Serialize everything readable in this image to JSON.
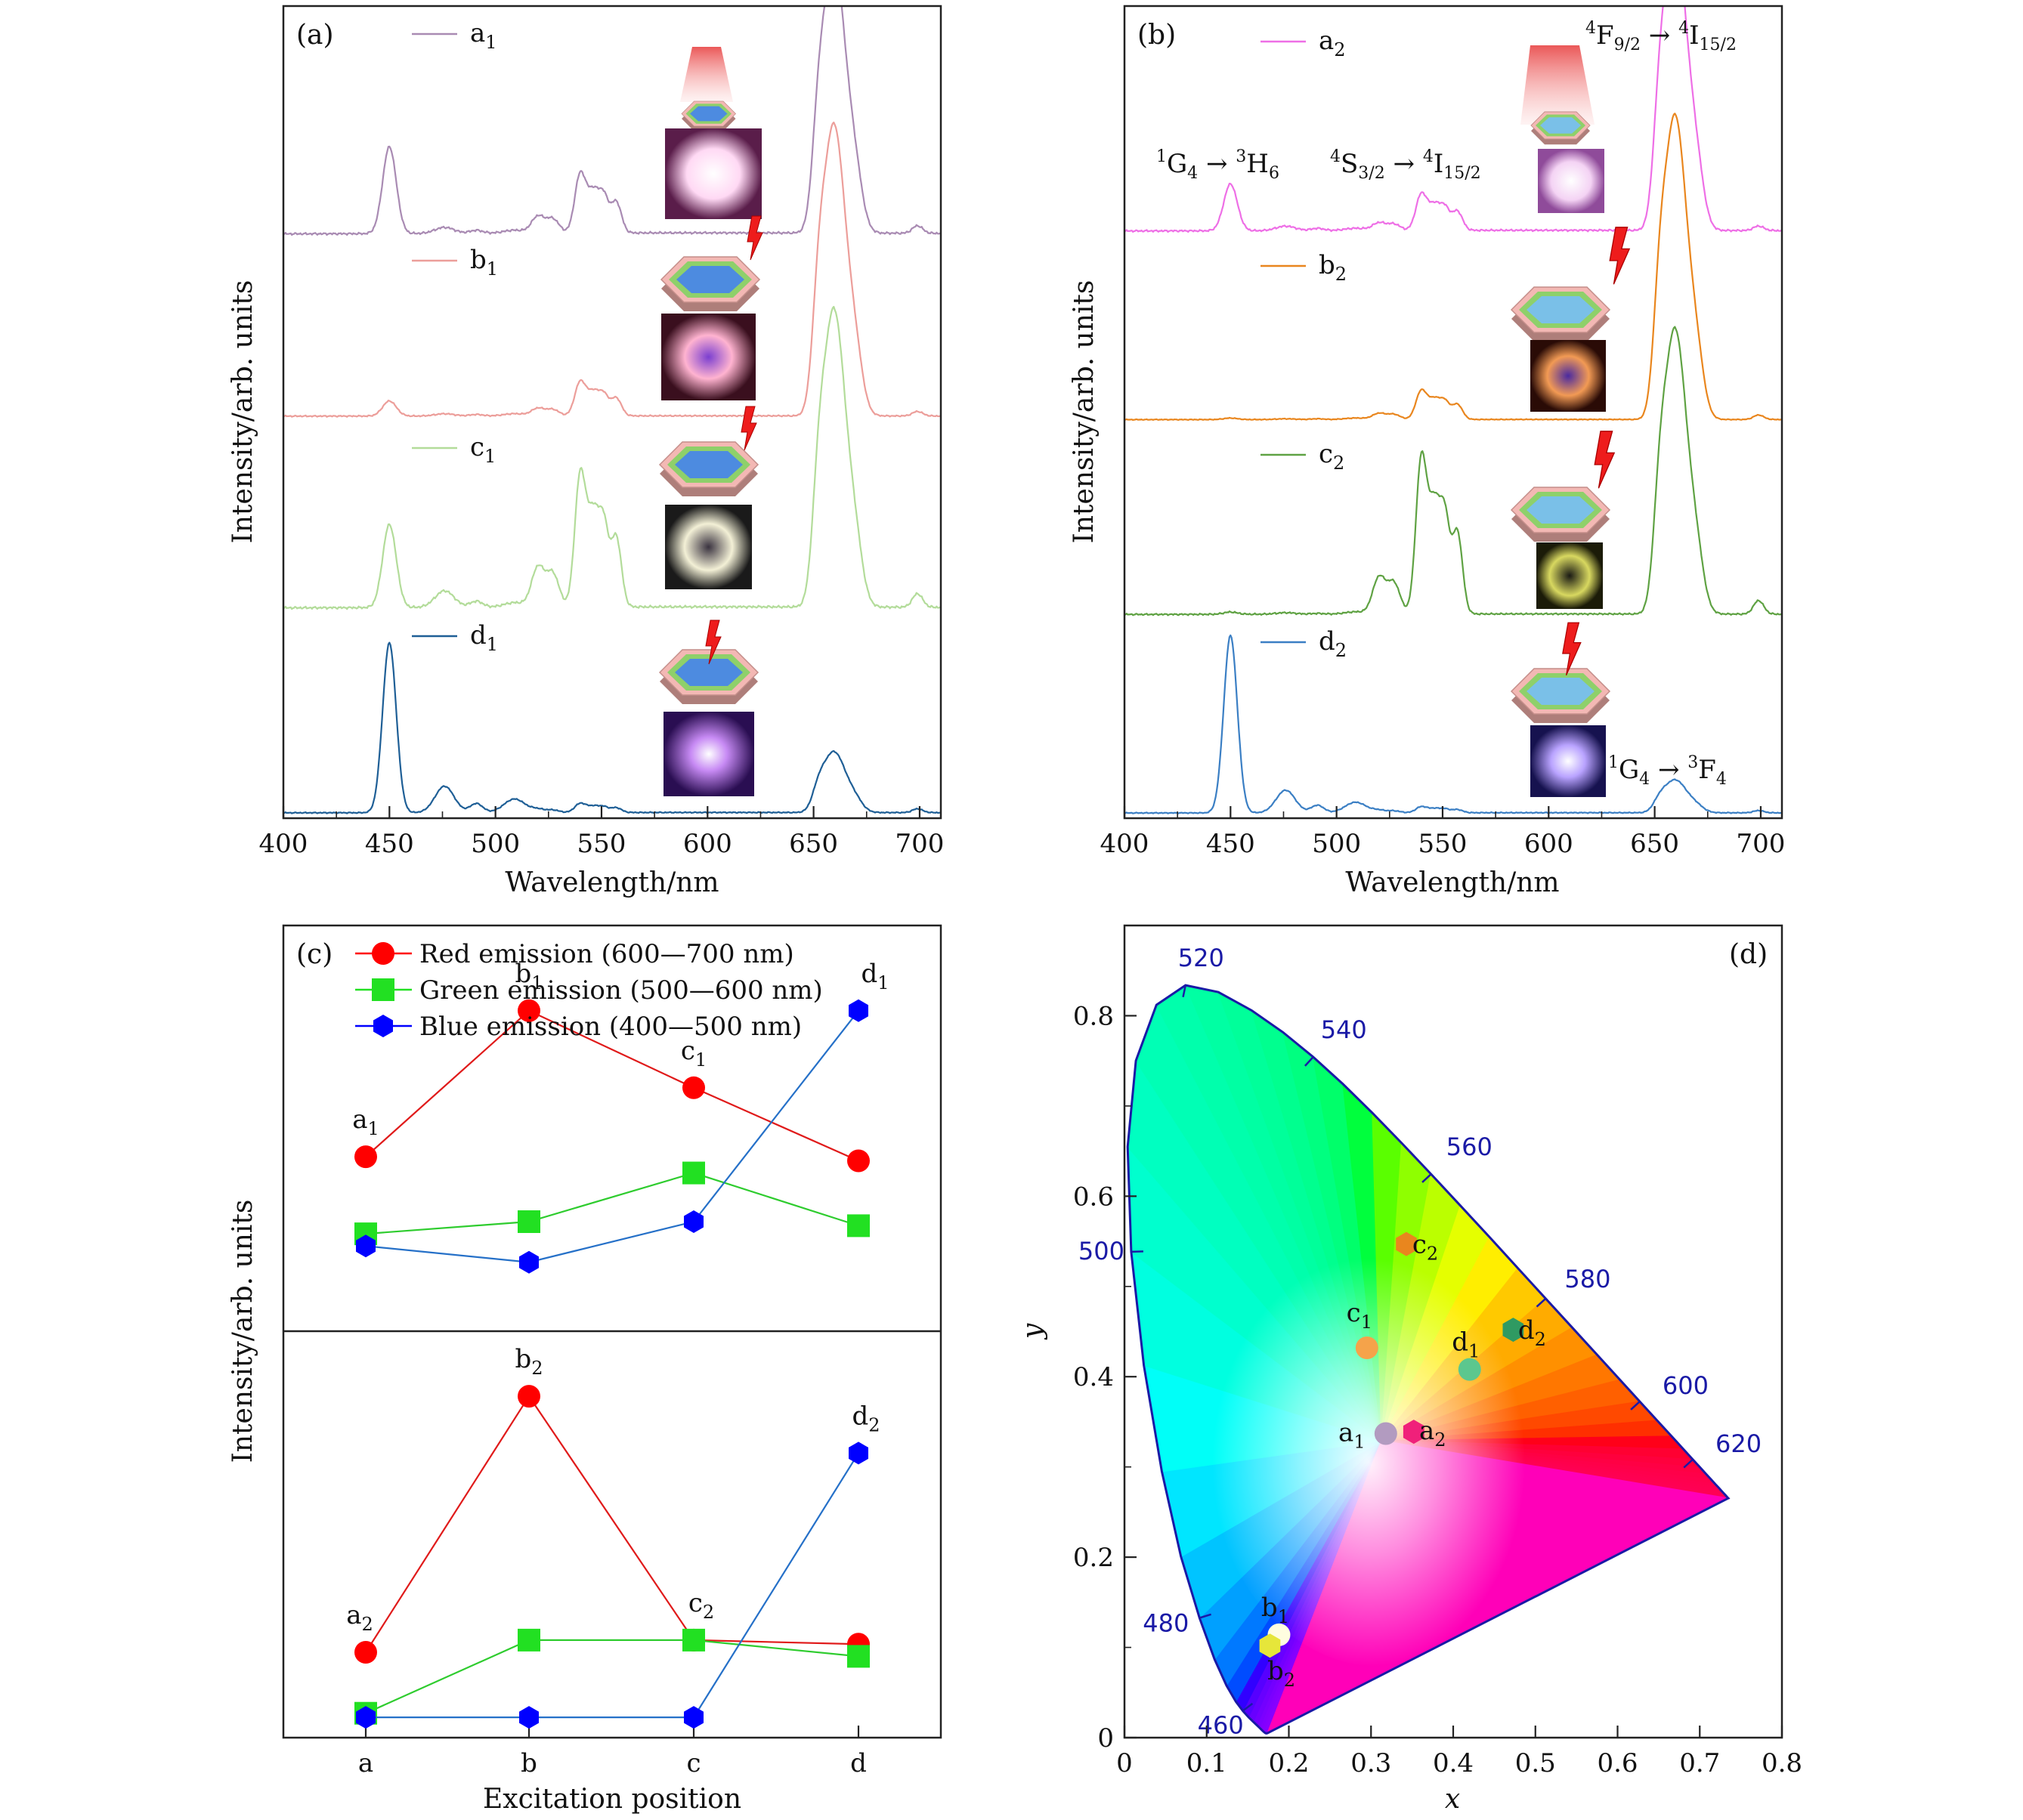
{
  "chart_data": [
    {
      "id": "a",
      "type": "line",
      "panel_label": "(a)",
      "xlabel": "Wavelength/nm",
      "ylabel": "Intensity/arb. units",
      "xlim": [
        400,
        710
      ],
      "xticks": [
        400,
        450,
        500,
        550,
        600,
        650,
        700
      ],
      "series": [
        {
          "name": "a1",
          "label_main": "a",
          "label_sub": "1",
          "color": "#a98bb3"
        },
        {
          "name": "b1",
          "label_main": "b",
          "label_sub": "1",
          "color": "#ec9e9a"
        },
        {
          "name": "c1",
          "label_main": "c",
          "label_sub": "1",
          "color": "#b3dc9a"
        },
        {
          "name": "d1",
          "label_main": "d",
          "label_sub": "1",
          "color": "#1f5f96"
        }
      ]
    },
    {
      "id": "b",
      "type": "line",
      "panel_label": "(b)",
      "xlabel": "Wavelength/nm",
      "ylabel": "Intensity/arb. units",
      "xlim": [
        400,
        710
      ],
      "xticks": [
        400,
        450,
        500,
        550,
        600,
        650,
        700
      ],
      "series": [
        {
          "name": "a2",
          "label_main": "a",
          "label_sub": "2",
          "color": "#ee6fe6"
        },
        {
          "name": "b2",
          "label_main": "b",
          "label_sub": "2",
          "color": "#e9861e"
        },
        {
          "name": "c2",
          "label_main": "c",
          "label_sub": "2",
          "color": "#5fa243"
        },
        {
          "name": "d2",
          "label_main": "d",
          "label_sub": "2",
          "color": "#3b7fc4"
        }
      ],
      "annotations": {
        "t1": {
          "pre": "4",
          "a": "F",
          "asub": "9/2",
          "mid": "4",
          "b": "I",
          "bsub": "15/2"
        },
        "t2": {
          "pre": "1",
          "a": "G",
          "asub": "4",
          "mid": "3",
          "b": "H",
          "bsub": "6"
        },
        "t3": {
          "pre": "4",
          "a": "S",
          "asub": "3/2",
          "mid": "4",
          "b": "I",
          "bsub": "15/2"
        },
        "t4": {
          "pre": "1",
          "a": "G",
          "asub": "4",
          "mid": "3",
          "b": "F",
          "bsub": "4"
        }
      }
    },
    {
      "id": "c",
      "type": "line",
      "panel_label": "(c)",
      "xlabel": "Excitation position",
      "ylabel": "Intensity/arb. units",
      "categories": [
        "a",
        "b",
        "c",
        "d"
      ],
      "legend": [
        {
          "label": "Red emission (600—700 nm)",
          "color": "#ff0000",
          "marker": "circle"
        },
        {
          "label": "Green emission (500—600 nm)",
          "color": "#22e022",
          "marker": "square"
        },
        {
          "label": "Blue emission (400—500 nm)",
          "color": "#0000ff",
          "marker": "hexagon"
        }
      ],
      "upper": {
        "ylim": [
          0,
          1
        ],
        "series": [
          {
            "name": "Red",
            "values": [
              0.43,
              0.79,
              0.6,
              0.42
            ]
          },
          {
            "name": "Green",
            "values": [
              0.24,
              0.27,
              0.39,
              0.26
            ]
          },
          {
            "name": "Blue",
            "values": [
              0.21,
              0.17,
              0.27,
              0.79
            ]
          }
        ],
        "point_labels": [
          {
            "main": "a",
            "sub": "1"
          },
          {
            "main": "b",
            "sub": "1"
          },
          {
            "main": "c",
            "sub": "1"
          },
          {
            "main": "d",
            "sub": "1"
          }
        ]
      },
      "lower": {
        "ylim": [
          0,
          1
        ],
        "series": [
          {
            "name": "Red",
            "values": [
              0.21,
              0.84,
              0.24,
              0.23
            ]
          },
          {
            "name": "Green",
            "values": [
              0.06,
              0.24,
              0.24,
              0.2
            ]
          },
          {
            "name": "Blue",
            "values": [
              0.05,
              0.05,
              0.05,
              0.7
            ]
          }
        ],
        "point_labels": [
          {
            "main": "a",
            "sub": "2"
          },
          {
            "main": "b",
            "sub": "2"
          },
          {
            "main": "c",
            "sub": "2"
          },
          {
            "main": "d",
            "sub": "2"
          }
        ]
      }
    },
    {
      "id": "d",
      "type": "scatter",
      "panel_label": "(d)",
      "xlabel": "x",
      "ylabel": "y",
      "xlim": [
        0,
        0.8
      ],
      "ylim": [
        0,
        0.9
      ],
      "xticks": [
        "0",
        "0.1",
        "0.2",
        "0.3",
        "0.4",
        "0.5",
        "0.6",
        "0.7",
        "0.8"
      ],
      "yticks": [
        "0",
        "0.2",
        "0.4",
        "0.6",
        "0.8"
      ],
      "wavelength_labels": [
        "460",
        "480",
        "500",
        "520",
        "540",
        "560",
        "580",
        "600",
        "620"
      ],
      "points": [
        {
          "main": "a",
          "sub": "1",
          "x": 0.318,
          "y": 0.337,
          "color": "#b29bc0",
          "marker": "circle"
        },
        {
          "main": "a",
          "sub": "2",
          "x": 0.352,
          "y": 0.339,
          "color": "#f0207a",
          "marker": "hexagon"
        },
        {
          "main": "b",
          "sub": "1",
          "x": 0.188,
          "y": 0.114,
          "color": "#fffde0",
          "marker": "circle"
        },
        {
          "main": "b",
          "sub": "2",
          "x": 0.177,
          "y": 0.102,
          "color": "#e6e63a",
          "marker": "hexagon"
        },
        {
          "main": "c",
          "sub": "1",
          "x": 0.295,
          "y": 0.432,
          "color": "#f5a34a",
          "marker": "circle"
        },
        {
          "main": "c",
          "sub": "2",
          "x": 0.343,
          "y": 0.547,
          "color": "#e9861e",
          "marker": "hexagon"
        },
        {
          "main": "d",
          "sub": "1",
          "x": 0.42,
          "y": 0.408,
          "color": "#5cc78e",
          "marker": "circle"
        },
        {
          "main": "d",
          "sub": "2",
          "x": 0.473,
          "y": 0.452,
          "color": "#2f9a62",
          "marker": "hexagon"
        }
      ]
    }
  ]
}
